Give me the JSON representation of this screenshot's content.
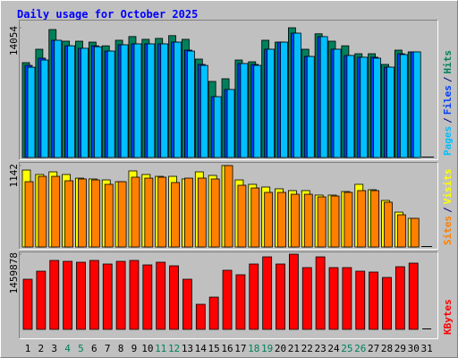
{
  "chart_data": [
    {
      "type": "bar",
      "title": "Daily usage for October 2025",
      "label_separator": "/",
      "ylim": [
        0,
        14054
      ],
      "yticks": [
        14054
      ],
      "series": [
        {
          "name": "Hits",
          "color": "#00805c",
          "values": [
            10274,
            11727,
            13860,
            12600,
            12600,
            12500,
            12100,
            12700,
            13100,
            12800,
            12900,
            13200,
            12800,
            10660,
            8240,
            8530,
            10560,
            10370,
            12700,
            12500,
            14054,
            11727,
            13400,
            12600,
            12100,
            11240,
            11240,
            10080,
            11630,
            11440,
            0
          ]
        },
        {
          "name": "Files",
          "color": "#0040ff",
          "values": [
            9980,
            10760,
            12700,
            12100,
            11830,
            12100,
            11530,
            12210,
            12310,
            12310,
            12310,
            12500,
            11630,
            10080,
            6590,
            7370,
            10180,
            10080,
            11730,
            12500,
            13470,
            10950,
            13090,
            11730,
            11050,
            10860,
            10860,
            9790,
            11240,
            11440,
            0
          ]
        },
        {
          "name": "Pages",
          "color": "#00c0ff",
          "values": [
            9780,
            10560,
            12700,
            12100,
            11830,
            12000,
            11530,
            12210,
            12310,
            12310,
            12310,
            12500,
            11530,
            9980,
            6590,
            7370,
            10180,
            9980,
            11730,
            12500,
            13470,
            10950,
            13090,
            11730,
            11050,
            10860,
            10760,
            9790,
            11150,
            11440,
            0
          ]
        }
      ]
    },
    {
      "type": "bar",
      "label_separator": "/",
      "ylim": [
        0,
        1142
      ],
      "yticks": [
        1142
      ],
      "series": [
        {
          "name": "Visits",
          "color": "#ffff00",
          "values": [
            1079,
            1017,
            1054,
            1017,
            966,
            954,
            941,
            916,
            1067,
            1017,
            991,
            991,
            954,
            1054,
            1004,
            1142,
            941,
            879,
            841,
            816,
            791,
            791,
            728,
            728,
            778,
            879,
            803,
            653,
            489,
            402,
            0
          ]
        },
        {
          "name": "Sites",
          "color": "#ff8000",
          "values": [
            916,
            991,
            991,
            929,
            954,
            941,
            879,
            916,
            979,
            966,
            979,
            904,
            966,
            966,
            954,
            1142,
            866,
            828,
            766,
            766,
            740,
            740,
            703,
            715,
            766,
            791,
            791,
            628,
            452,
            402,
            0
          ]
        }
      ]
    },
    {
      "type": "bar",
      "ylim": [
        0,
        1459878
      ],
      "yticks": [
        1459878
      ],
      "categories": [
        "1",
        "2",
        "3",
        "4",
        "5",
        "6",
        "7",
        "8",
        "9",
        "10",
        "11",
        "12",
        "13",
        "14",
        "15",
        "16",
        "17",
        "18",
        "19",
        "20",
        "21",
        "22",
        "23",
        "24",
        "25",
        "26",
        "27",
        "28",
        "29",
        "30",
        "31"
      ],
      "highlight_color": "#00805c",
      "highlighted": [
        3,
        4,
        10,
        11,
        17,
        18,
        24,
        25
      ],
      "series": [
        {
          "name": "KBytes",
          "color": "#ff0000",
          "values": [
            973280,
            1129700,
            1338260,
            1320880,
            1303500,
            1338260,
            1268740,
            1320880,
            1338260,
            1251360,
            1303500,
            1233980,
            973280,
            486640,
            625680,
            1147080,
            1060180,
            1268740,
            1407780,
            1268740,
            1459878,
            1199220,
            1407780,
            1199220,
            1199220,
            1129700,
            1112320,
            1008040,
            1216600,
            1286120,
            0
          ]
        }
      ]
    }
  ]
}
